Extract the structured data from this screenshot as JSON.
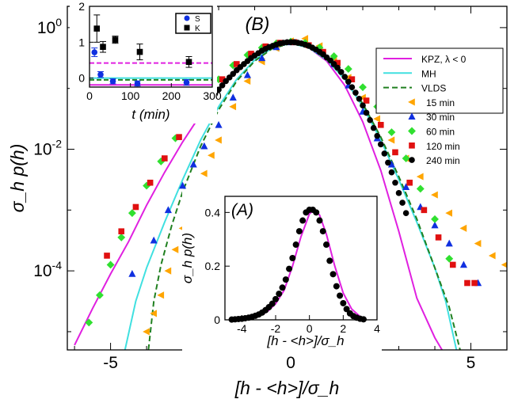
{
  "chart_data": [
    {
      "id": "main",
      "type": "scatter",
      "panel_label": "(B)",
      "xlabel": "[h - <h>]/σ_h",
      "ylabel": "σ_h p(h)",
      "xlim": [
        -6.2,
        6.0
      ],
      "ylim_log10": [
        -5.3,
        0.35
      ],
      "yscale": "log",
      "x_ticks": [
        -5,
        0,
        5
      ],
      "x_tick_labels": [
        "-5",
        "0",
        "5"
      ],
      "y_ticks_log10": [
        0,
        -2,
        -4
      ],
      "y_tick_labels": [
        {
          "base": "10",
          "exp": "0"
        },
        {
          "base": "10",
          "exp": "-2"
        },
        {
          "base": "10",
          "exp": "-4"
        }
      ],
      "legend": [
        {
          "label": "KPZ, λ < 0",
          "kind": "line",
          "color": "#e020e0",
          "dash": false
        },
        {
          "label": "MH",
          "kind": "line",
          "color": "#40e0e0",
          "dash": false
        },
        {
          "label": "VLDS",
          "kind": "line",
          "color": "#208020",
          "dash": true
        },
        {
          "label": "15 min",
          "kind": "marker",
          "marker": "triangle-left",
          "color": "#ffa500"
        },
        {
          "label": "30 min",
          "kind": "marker",
          "marker": "triangle-up",
          "color": "#1030e0"
        },
        {
          "label": "60 min",
          "kind": "marker",
          "marker": "diamond",
          "color": "#30e030"
        },
        {
          "label": "120 min",
          "kind": "marker",
          "marker": "square",
          "color": "#e01010"
        },
        {
          "label": "240 min",
          "kind": "marker",
          "marker": "circle",
          "color": "#000000"
        }
      ],
      "curves": [
        {
          "name": "KPZ, λ < 0",
          "color": "#e020e0",
          "dash": false,
          "x": [
            -6.0,
            -5.5,
            -5.0,
            -4.5,
            -4.0,
            -3.5,
            -3.0,
            -2.5,
            -2.0,
            -1.5,
            -1.0,
            -0.5,
            0.0,
            0.5,
            1.0,
            1.5,
            2.0,
            2.5,
            3.0,
            3.5,
            4.0,
            4.2
          ],
          "log10y": [
            -5.22,
            -4.62,
            -4.05,
            -3.52,
            -2.92,
            -2.38,
            -1.88,
            -1.43,
            -1.03,
            -0.7,
            -0.46,
            -0.3,
            -0.25,
            -0.33,
            -0.55,
            -0.95,
            -1.55,
            -2.35,
            -3.35,
            -4.45,
            -5.1,
            -5.3
          ]
        },
        {
          "name": "MH",
          "color": "#40e0e0",
          "dash": false,
          "x": [
            -4.6,
            -4.3,
            -4.0,
            -3.5,
            -3.0,
            -2.5,
            -2.0,
            -1.5,
            -1.0,
            -0.5,
            0.0,
            0.5,
            1.0,
            1.5,
            2.0,
            2.5,
            3.0,
            3.5,
            4.0,
            4.3,
            4.6
          ],
          "log10y": [
            -5.3,
            -4.5,
            -3.95,
            -3.2,
            -2.5,
            -1.85,
            -1.3,
            -0.85,
            -0.53,
            -0.33,
            -0.26,
            -0.33,
            -0.53,
            -0.85,
            -1.3,
            -1.85,
            -2.5,
            -3.2,
            -3.95,
            -4.5,
            -5.3
          ]
        },
        {
          "name": "VLDS",
          "color": "#208020",
          "dash": true,
          "x": [
            -3.95,
            -3.8,
            -3.6,
            -3.3,
            -3.0,
            -2.5,
            -2.0,
            -1.5,
            -1.0,
            -0.5,
            0.0,
            0.5,
            1.0,
            1.5,
            2.0,
            2.5,
            3.0,
            3.5,
            4.0,
            4.4,
            4.7
          ],
          "log10y": [
            -5.3,
            -4.5,
            -3.9,
            -3.25,
            -2.7,
            -1.95,
            -1.35,
            -0.88,
            -0.55,
            -0.34,
            -0.26,
            -0.32,
            -0.52,
            -0.83,
            -1.25,
            -1.8,
            -2.45,
            -3.15,
            -3.95,
            -4.6,
            -5.3
          ]
        }
      ],
      "series": [
        {
          "name": "15 min",
          "marker": "triangle-left",
          "color": "#ffa500",
          "x": [
            -4.0,
            -3.8,
            -3.6,
            -3.4,
            -3.2,
            -3.0,
            -2.8,
            -2.6,
            -2.4,
            -2.2,
            -2.0,
            -1.6,
            -1.2,
            -0.8,
            -0.4,
            0.0,
            0.4,
            0.8,
            1.2,
            1.6,
            2.0,
            2.4,
            2.8,
            3.2,
            3.6,
            4.0,
            4.4,
            4.8,
            5.2,
            5.6,
            5.95
          ],
          "log10y": [
            -5.0,
            -4.7,
            -4.4,
            -4.0,
            -3.65,
            -3.3,
            -3.0,
            -2.75,
            -2.4,
            -2.1,
            -1.85,
            -1.3,
            -0.88,
            -0.56,
            -0.34,
            -0.22,
            -0.18,
            -0.3,
            -0.52,
            -0.82,
            -1.15,
            -1.5,
            -1.85,
            -2.15,
            -2.45,
            -2.75,
            -3.05,
            -3.3,
            -3.55,
            -3.75,
            -3.9
          ]
        },
        {
          "name": "30 min",
          "marker": "triangle-up",
          "color": "#1030e0",
          "x": [
            -4.4,
            -3.8,
            -3.4,
            -3.0,
            -2.7,
            -2.4,
            -2.0,
            -1.6,
            -1.2,
            -0.8,
            -0.4,
            0.0,
            0.4,
            0.8,
            1.2,
            1.6,
            2.0,
            2.4,
            2.8,
            3.2,
            3.6,
            4.0,
            4.4,
            4.8,
            5.2
          ],
          "log10y": [
            -4.05,
            -3.5,
            -3.0,
            -2.6,
            -2.25,
            -1.95,
            -1.6,
            -1.15,
            -0.78,
            -0.5,
            -0.32,
            -0.24,
            -0.26,
            -0.38,
            -0.6,
            -0.95,
            -1.38,
            -1.82,
            -2.25,
            -2.62,
            -2.95,
            -3.25,
            -3.55,
            -3.9,
            -4.2
          ]
        },
        {
          "name": "60 min",
          "marker": "diamond",
          "color": "#30e030",
          "x": [
            -5.6,
            -5.3,
            -5.0,
            -4.7,
            -4.4,
            -4.0,
            -3.6,
            -3.2,
            -2.8,
            -2.4,
            -2.0,
            -1.6,
            -1.2,
            -0.8,
            -0.4,
            0.0,
            0.4,
            0.8,
            1.2,
            1.6,
            2.0,
            2.4,
            2.8,
            3.2,
            3.6,
            4.0,
            4.4
          ],
          "log10y": [
            -4.85,
            -4.4,
            -3.9,
            -3.45,
            -3.05,
            -2.6,
            -2.2,
            -1.82,
            -1.48,
            -1.15,
            -0.85,
            -0.62,
            -0.45,
            -0.33,
            -0.26,
            -0.23,
            -0.25,
            -0.33,
            -0.47,
            -0.68,
            -0.98,
            -1.3,
            -1.72,
            -2.15,
            -2.65,
            -3.15,
            -3.8
          ]
        },
        {
          "name": "120 min",
          "marker": "square",
          "color": "#e01010",
          "x": [
            -5.1,
            -4.7,
            -4.3,
            -3.9,
            -3.5,
            -3.1,
            -2.7,
            -2.3,
            -1.9,
            -1.5,
            -1.1,
            -0.7,
            -0.3,
            0.1,
            0.5,
            0.9,
            1.3,
            1.7,
            2.1,
            2.5,
            2.9,
            3.3,
            3.7,
            4.1,
            4.5,
            4.9,
            5.1
          ],
          "log10y": [
            -3.75,
            -3.35,
            -2.95,
            -2.55,
            -2.15,
            -1.8,
            -1.45,
            -1.12,
            -0.85,
            -0.6,
            -0.43,
            -0.31,
            -0.25,
            -0.24,
            -0.29,
            -0.4,
            -0.58,
            -0.85,
            -1.2,
            -1.6,
            -2.05,
            -2.55,
            -3.0,
            -3.45,
            -3.9,
            -4.2,
            -4.2
          ]
        },
        {
          "name": "240 min",
          "marker": "circle",
          "color": "#000000",
          "x": [
            -2.6,
            -2.5,
            -2.4,
            -2.3,
            -2.2,
            -2.1,
            -2.0,
            -1.9,
            -1.8,
            -1.7,
            -1.6,
            -1.5,
            -1.4,
            -1.3,
            -1.2,
            -1.1,
            -1.0,
            -0.9,
            -0.8,
            -0.7,
            -0.6,
            -0.5,
            -0.4,
            -0.3,
            -0.2,
            -0.1,
            0.0,
            0.1,
            0.2,
            0.3,
            0.4,
            0.5,
            0.6,
            0.7,
            0.8,
            0.9,
            1.0,
            1.1,
            1.2,
            1.3,
            1.4,
            1.5,
            1.6,
            1.7,
            1.8,
            1.9,
            2.0,
            2.1,
            2.2,
            2.3,
            2.4,
            2.5,
            2.6,
            2.7,
            2.8,
            2.9,
            3.0,
            3.1,
            3.2
          ],
          "log10y": [
            -1.48,
            -1.4,
            -1.32,
            -1.24,
            -1.16,
            -1.09,
            -1.02,
            -0.95,
            -0.88,
            -0.82,
            -0.76,
            -0.7,
            -0.65,
            -0.6,
            -0.55,
            -0.5,
            -0.46,
            -0.42,
            -0.38,
            -0.35,
            -0.32,
            -0.3,
            -0.28,
            -0.26,
            -0.25,
            -0.24,
            -0.24,
            -0.24,
            -0.25,
            -0.26,
            -0.28,
            -0.3,
            -0.33,
            -0.36,
            -0.4,
            -0.44,
            -0.49,
            -0.54,
            -0.6,
            -0.66,
            -0.73,
            -0.81,
            -0.89,
            -0.98,
            -1.07,
            -1.17,
            -1.28,
            -1.4,
            -1.52,
            -1.65,
            -1.78,
            -1.92,
            -2.07,
            -2.22,
            -2.38,
            -2.55,
            -2.72,
            -2.88,
            -3.05
          ]
        }
      ]
    },
    {
      "id": "inset_A",
      "type": "scatter",
      "panel_label": "(A)",
      "xlabel": "[h - <h>]/σ_h",
      "ylabel": "σ_h p(h)",
      "xlim": [
        -5.0,
        4.0
      ],
      "ylim": [
        0,
        0.46
      ],
      "x_ticks": [
        -4,
        -2,
        0,
        2,
        4
      ],
      "x_tick_labels": [
        "-4",
        "-2",
        "0",
        "2",
        "4"
      ],
      "y_ticks": [
        0,
        0.2,
        0.4
      ],
      "y_tick_labels": [
        "0",
        "0.2",
        "0.4"
      ],
      "curve": {
        "name": "fit",
        "color": "#e020e0",
        "x": [
          -4.6,
          -4.0,
          -3.5,
          -3.0,
          -2.5,
          -2.0,
          -1.5,
          -1.0,
          -0.5,
          0.0,
          0.3,
          0.6,
          1.0,
          1.5,
          2.0,
          2.5,
          3.0,
          3.3
        ],
        "y": [
          0.0,
          0.002,
          0.006,
          0.014,
          0.03,
          0.06,
          0.11,
          0.2,
          0.31,
          0.395,
          0.41,
          0.39,
          0.32,
          0.2,
          0.1,
          0.04,
          0.012,
          0.004
        ]
      },
      "series": [
        {
          "name": "240 min",
          "marker": "circle",
          "color": "#000000",
          "x": [
            -4.6,
            -4.4,
            -4.2,
            -4.0,
            -3.8,
            -3.6,
            -3.4,
            -3.2,
            -3.0,
            -2.8,
            -2.6,
            -2.4,
            -2.2,
            -2.0,
            -1.8,
            -1.6,
            -1.4,
            -1.2,
            -1.0,
            -0.8,
            -0.6,
            -0.4,
            -0.2,
            0.0,
            0.2,
            0.4,
            0.6,
            0.8,
            1.0,
            1.2,
            1.4,
            1.6,
            1.8,
            2.0,
            2.2,
            2.4,
            2.6,
            2.8,
            3.0,
            3.2
          ],
          "y": [
            0.001,
            0.002,
            0.003,
            0.004,
            0.006,
            0.008,
            0.011,
            0.015,
            0.02,
            0.027,
            0.036,
            0.047,
            0.06,
            0.077,
            0.097,
            0.12,
            0.15,
            0.19,
            0.23,
            0.28,
            0.33,
            0.37,
            0.4,
            0.41,
            0.41,
            0.4,
            0.37,
            0.33,
            0.28,
            0.22,
            0.17,
            0.125,
            0.09,
            0.062,
            0.04,
            0.024,
            0.014,
            0.008,
            0.004,
            0.002
          ]
        }
      ]
    },
    {
      "id": "inset_B",
      "type": "scatter",
      "xlabel": "t (min)",
      "xlim": [
        0,
        300
      ],
      "ylim": [
        -0.25,
        2.0
      ],
      "x_ticks": [
        0,
        100,
        200,
        300
      ],
      "x_tick_labels": [
        "0",
        "100",
        "200",
        "300"
      ],
      "y_ticks": [
        0,
        1,
        2
      ],
      "y_tick_labels": [
        "0",
        "1",
        "2"
      ],
      "legend": [
        {
          "label": "S",
          "marker": "circle",
          "color": "#1030e0"
        },
        {
          "label": "K",
          "marker": "square",
          "color": "#000000"
        }
      ],
      "hlines": [
        {
          "y": 0.42,
          "color": "#e020e0",
          "dash": true
        },
        {
          "y": 0.0,
          "color": "#40e0e0",
          "dash": false
        },
        {
          "y": -0.05,
          "color": "#208020",
          "dash": true
        },
        {
          "y": -0.19,
          "color": "#e020e0",
          "dash": false
        }
      ],
      "series": [
        {
          "name": "S",
          "marker": "circle",
          "color": "#1030e0",
          "x": [
            15,
            30,
            60,
            120,
            240
          ],
          "y": [
            0.72,
            0.1,
            -0.09,
            -0.15,
            -0.12
          ],
          "err": [
            0.12,
            0.08,
            0.07,
            0.07,
            0.08
          ]
        },
        {
          "name": "K",
          "marker": "square",
          "color": "#000000",
          "x": [
            15,
            30,
            60,
            120,
            240
          ],
          "y": [
            1.38,
            0.87,
            1.07,
            0.73,
            0.45
          ],
          "err": [
            0.38,
            0.15,
            0.1,
            0.22,
            0.15
          ]
        }
      ]
    }
  ]
}
